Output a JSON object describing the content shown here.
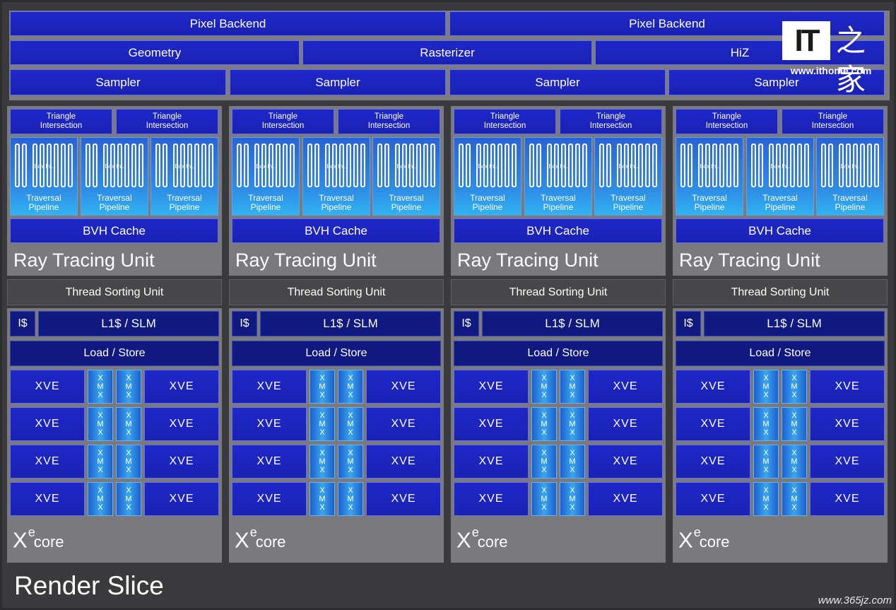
{
  "top": {
    "pixel_backend": [
      "Pixel Backend",
      "Pixel Backend"
    ],
    "geometry": "Geometry",
    "rasterizer": "Rasterizer",
    "hiz": "HiZ",
    "sampler": [
      "Sampler",
      "Sampler",
      "Sampler",
      "Sampler"
    ]
  },
  "rtu": {
    "triangle_intersection": "Triangle\nIntersection",
    "box_int": "Box Int.",
    "traversal_pipeline": "Traversal\nPipeline",
    "bvh_cache": "BVH Cache",
    "title": "Ray Tracing Unit"
  },
  "thread_sorting_unit": "Thread Sorting Unit",
  "xe_core": {
    "icache": "I$",
    "l1_slm": "L1$ / SLM",
    "load_store": "Load / Store",
    "xve": "XVE",
    "xmx": "X\nM\nX",
    "logo_x": "X",
    "logo_e": "e",
    "logo_core": "core"
  },
  "render_slice": "Render Slice",
  "watermark": {
    "it_text": "IT",
    "zh_text": "之家",
    "url": "www.ithome.com",
    "site2": "www.365jz.com"
  },
  "colors": {
    "block_blue": "#1e28c8",
    "dark_blue": "#0f1980",
    "panel_gray": "#7a7a7e",
    "background": "#2d2d2f"
  }
}
